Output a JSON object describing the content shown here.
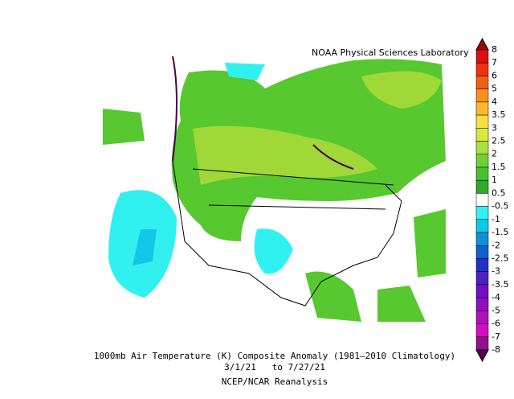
{
  "credit": "NOAA Physical Sciences Laboratory",
  "title": "1000mb Air Temperature (K) Composite Anomaly (1981–2010 Climatology)",
  "dates": "3/1/21   to 7/27/21",
  "source": "NCEP/NCAR Reanalysis",
  "colorbar": {
    "labels": [
      "8",
      "7",
      "6",
      "5",
      "4",
      "3.5",
      "3",
      "2.5",
      "2",
      "1.5",
      "1",
      "0.5",
      "-0.5",
      "-1",
      "-1.5",
      "-2",
      "-2.5",
      "-3",
      "-3.5",
      "-4",
      "-5",
      "-6",
      "-7",
      "-8"
    ],
    "colors": [
      "#a00000",
      "#d81010",
      "#f03010",
      "#f06010",
      "#f89020",
      "#f8b830",
      "#f8e040",
      "#d8e840",
      "#a8e040",
      "#70d038",
      "#48c030",
      "#30a828",
      "#ffffff",
      "#30f0f0",
      "#10c8e8",
      "#1090d8",
      "#1060d0",
      "#2030c8",
      "#5020c0",
      "#7010c0",
      "#9010c0",
      "#b010b8",
      "#d010c0",
      "#901090",
      "#500050"
    ]
  }
}
